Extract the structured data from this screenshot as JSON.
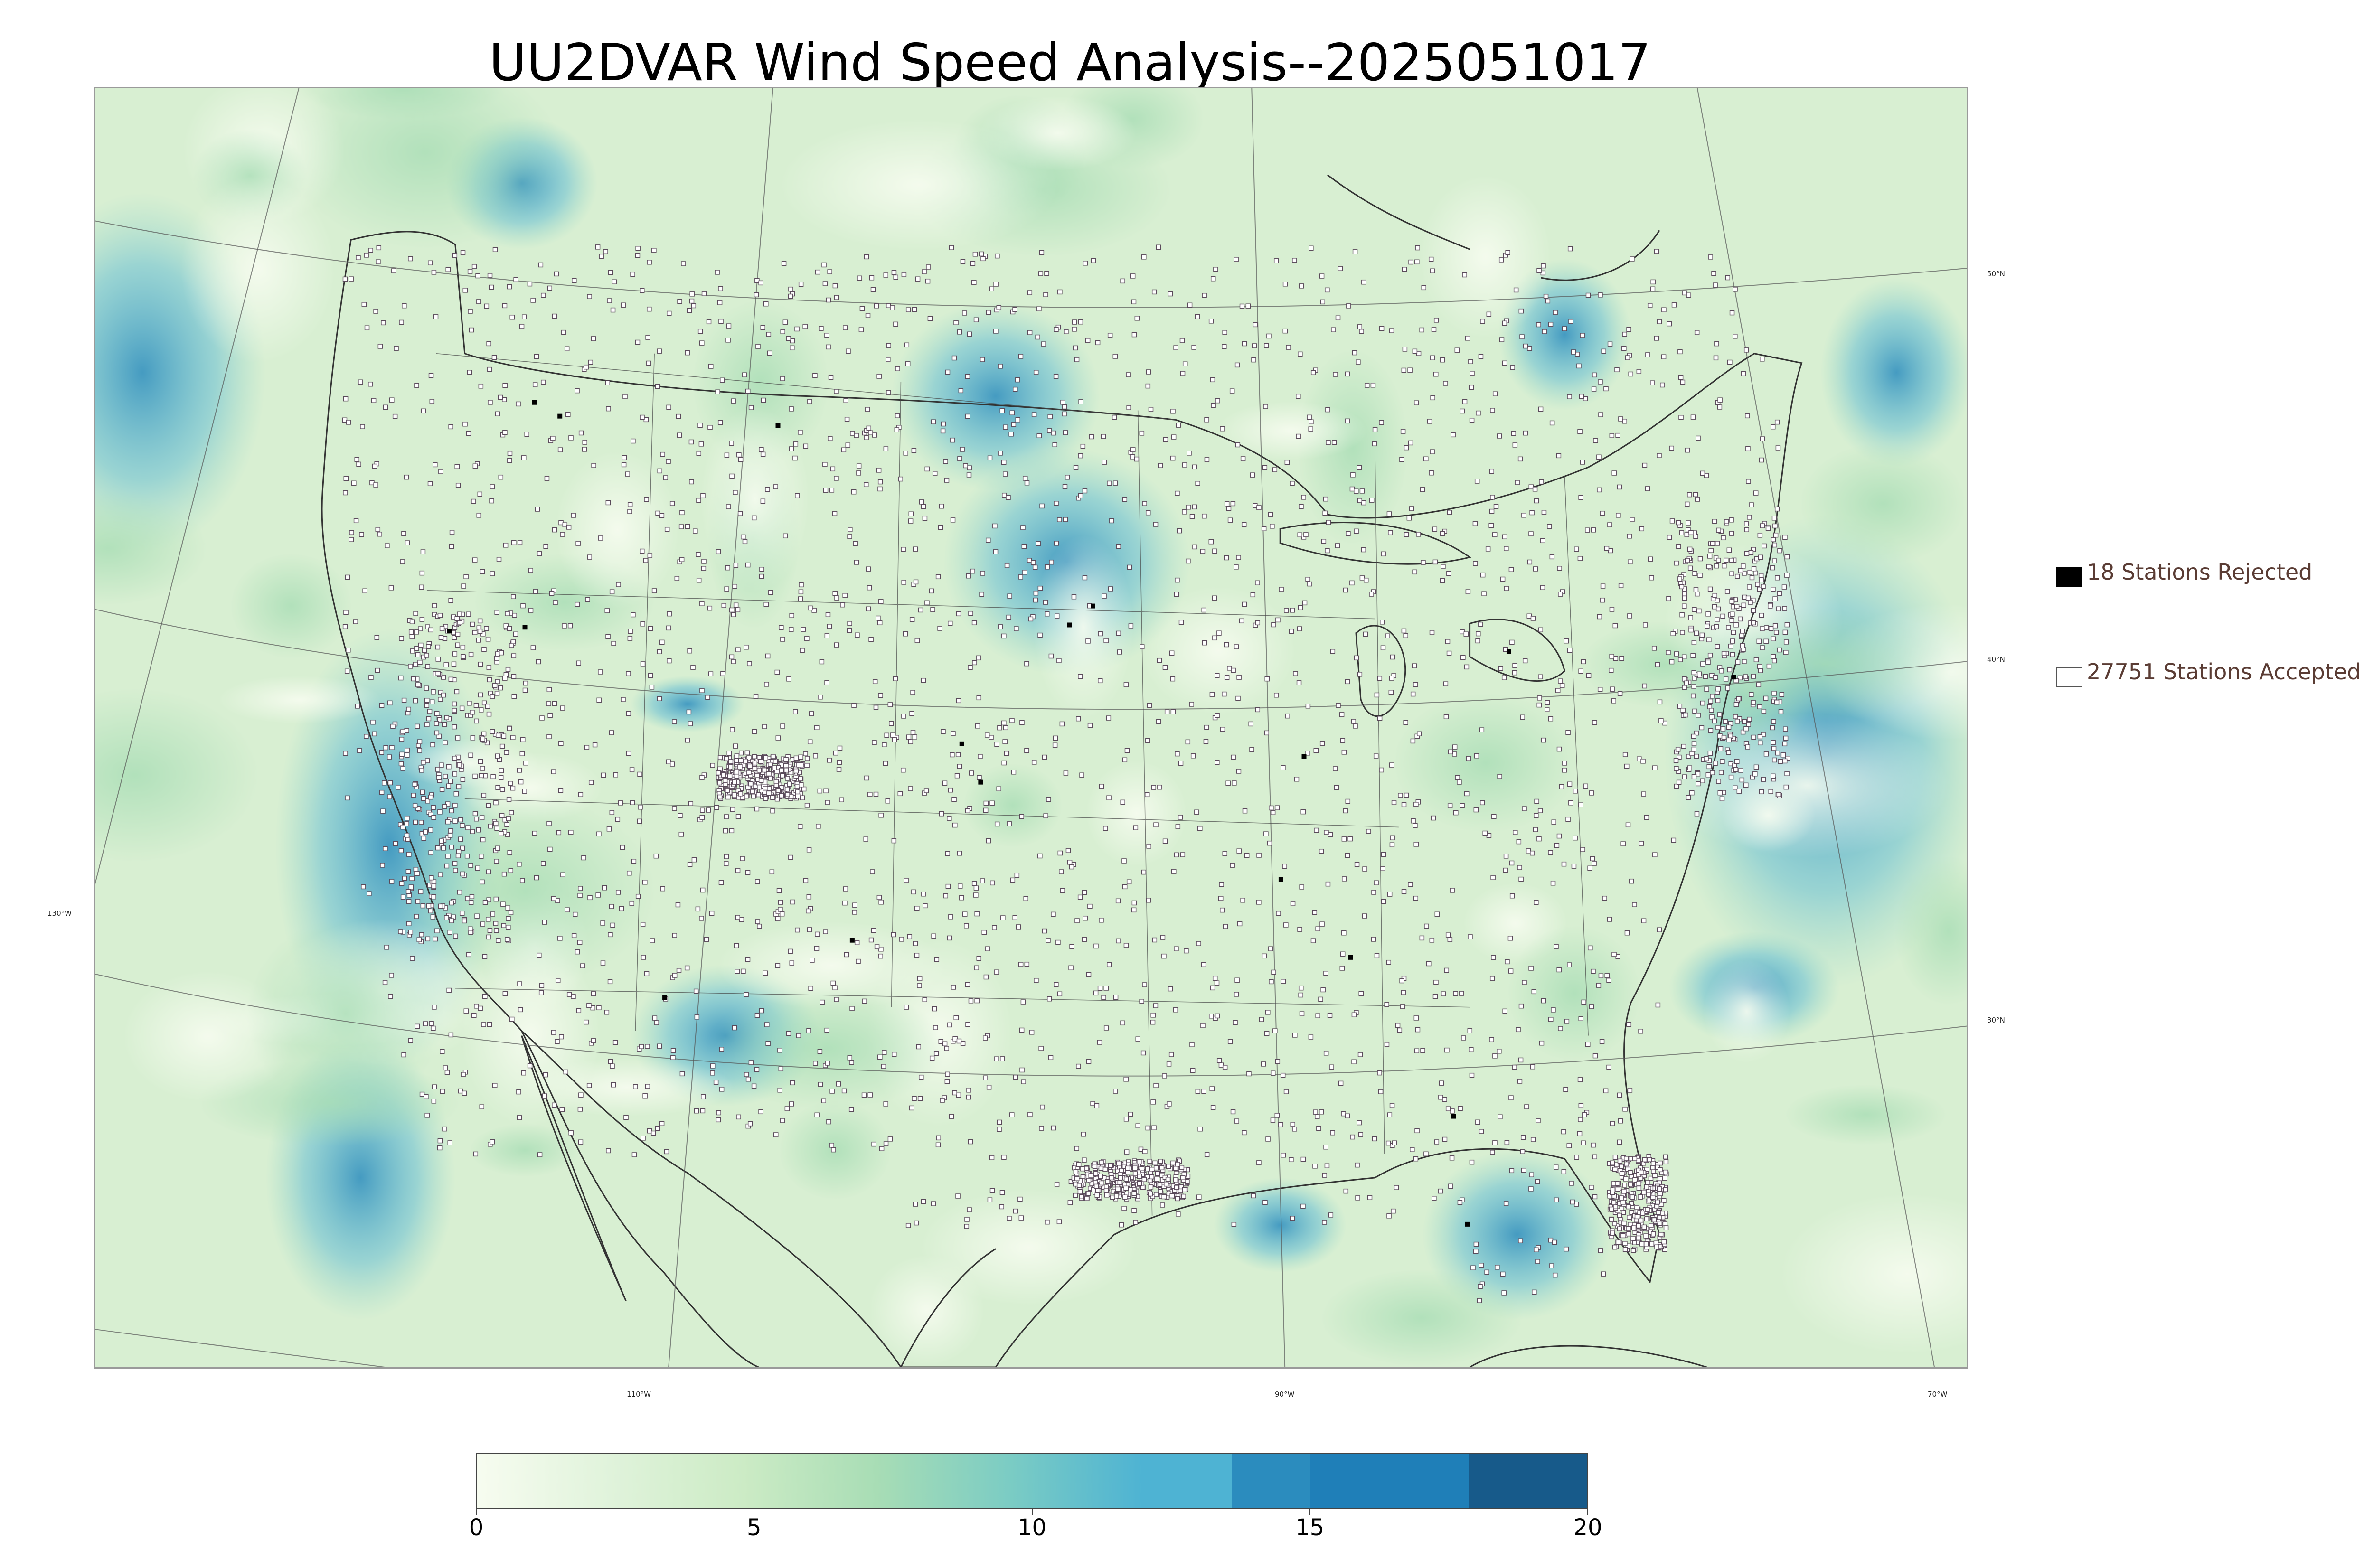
{
  "title": "UU2DVAR Wind Speed Analysis--2025051017",
  "legend": {
    "rejected": {
      "label": "18 Stations Rejected",
      "color": "#000000"
    },
    "accepted": {
      "label": "27751 Stations Accepted",
      "color": "#ffffff"
    }
  },
  "graticule": {
    "lon_labels": [
      "130°W",
      "110°W",
      "90°W",
      "70°W"
    ],
    "lat_labels": [
      "50°N",
      "40°N",
      "30°N"
    ]
  },
  "colorbar": {
    "ticks": [
      "0",
      "5",
      "10",
      "15",
      "20"
    ],
    "range": [
      0,
      20
    ],
    "colors": [
      "#f7fcf0",
      "#e0f3db",
      "#ccebc5",
      "#a8ddb5",
      "#7bccc4",
      "#4eb3d3",
      "#2b8cbe",
      "#0868ac",
      "#084081"
    ]
  },
  "map": {
    "field": "wind speed",
    "station_counts": {
      "rejected": 18,
      "accepted": 27751
    }
  }
}
